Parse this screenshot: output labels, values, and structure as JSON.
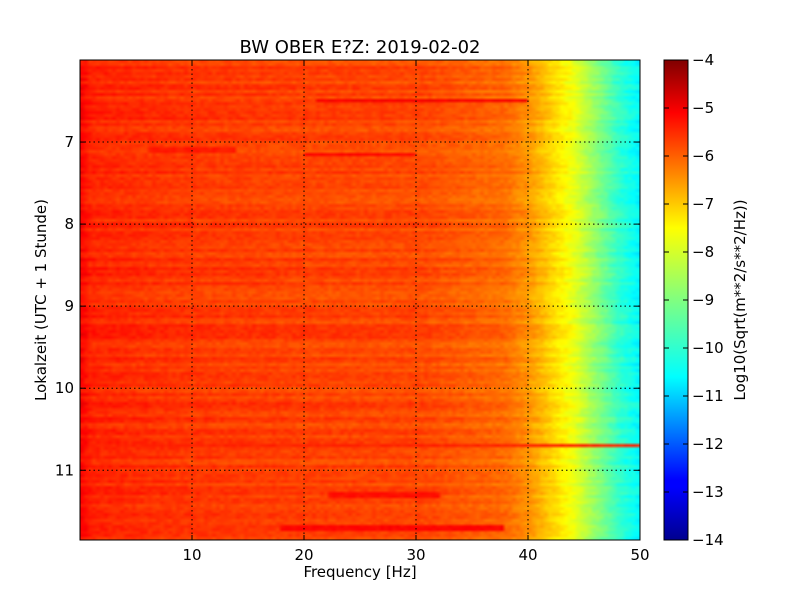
{
  "chart_data": {
    "type": "heatmap",
    "title": "BW OBER E?Z: 2019-02-02",
    "xlabel": "Frequency [Hz]",
    "ylabel": "Lokalzeit (UTC + 1 Stunde)",
    "xlim": [
      0,
      50
    ],
    "ylim": [
      11.85,
      6.0
    ],
    "x_ticks": [
      10,
      20,
      30,
      40,
      50
    ],
    "y_ticks": [
      7,
      8,
      9,
      10,
      11
    ],
    "grid": true,
    "colorbar": {
      "label": "Log10(Sqrt(m**2/s**2/Hz))",
      "range": [
        -14,
        -4
      ],
      "ticks": [
        -4,
        -5,
        -6,
        -7,
        -8,
        -9,
        -10,
        -11,
        -12,
        -13,
        -14
      ],
      "tick_labels": [
        "−4",
        "−5",
        "−6",
        "−7",
        "−8",
        "−9",
        "−10",
        "−11",
        "−12",
        "−13",
        "−14"
      ],
      "colormap": "jet"
    },
    "frequency_profile": {
      "frequency_hz": [
        0,
        1,
        5,
        10,
        20,
        30,
        38,
        40,
        42,
        44,
        46,
        48,
        50
      ],
      "log10_amplitude": [
        -5.2,
        -5.6,
        -5.7,
        -5.8,
        -5.9,
        -5.95,
        -6.3,
        -6.7,
        -7.3,
        -7.9,
        -8.8,
        -9.7,
        -10.3
      ]
    },
    "bands": [
      {
        "time": 6.5,
        "f_min": 21,
        "f_max": 40,
        "value": -5.2
      },
      {
        "time": 7.15,
        "f_min": 20,
        "f_max": 30,
        "value": -5.3
      },
      {
        "time": 7.1,
        "f_min": 6,
        "f_max": 14,
        "value": -5.5
      },
      {
        "time": 10.7,
        "f_min": 0,
        "f_max": 50,
        "value": -5.6
      },
      {
        "time": 11.3,
        "f_min": 22,
        "f_max": 32,
        "value": -5.4
      },
      {
        "time": 11.7,
        "f_min": 18,
        "f_max": 38,
        "value": -5.3
      }
    ]
  }
}
